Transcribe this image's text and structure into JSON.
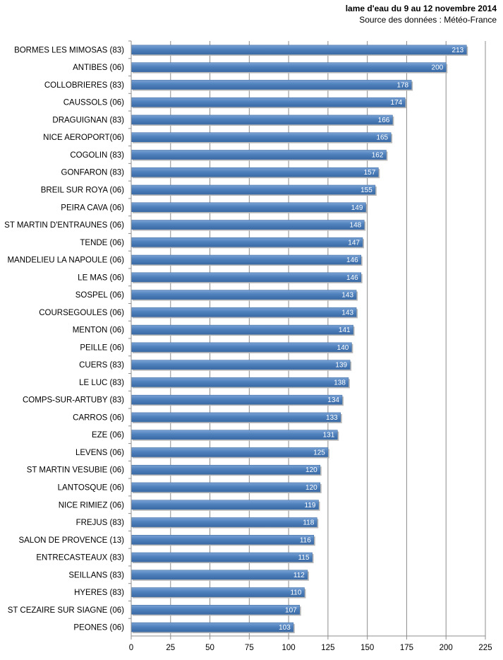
{
  "chart_data": {
    "type": "bar",
    "orientation": "horizontal",
    "title": "lame d'eau du 9 au 12 novembre 2014",
    "subtitle": "Source des données : Météo-France",
    "xlabel": "",
    "ylabel": "",
    "xlim": [
      0,
      225
    ],
    "ticks": [
      0,
      25,
      50,
      75,
      100,
      125,
      150,
      175,
      200,
      225
    ],
    "grid": true,
    "bar_color": "#4f81bd",
    "categories": [
      "BORMES LES MIMOSAS (83)",
      "ANTIBES (06)",
      "COLLOBRIERES (83)",
      "CAUSSOLS (06)",
      "DRAGUIGNAN (83)",
      "NICE AEROPORT(06)",
      "COGOLIN (83)",
      "GONFARON (83)",
      "BREIL SUR ROYA (06)",
      "PEIRA CAVA (06)",
      "ST MARTIN D'ENTRAUNES (06)",
      "TENDE (06)",
      "MANDELIEU LA NAPOULE (06)",
      "LE MAS (06)",
      "SOSPEL (06)",
      "COURSEGOULES (06)",
      "MENTON (06)",
      "PEILLE (06)",
      "CUERS (83)",
      "LE LUC (83)",
      "COMPS-SUR-ARTUBY (83)",
      "CARROS (06)",
      "EZE (06)",
      "LEVENS (06)",
      "ST MARTIN VESUBIE (06)",
      "LANTOSQUE (06)",
      "NICE RIMIEZ (06)",
      "FREJUS (83)",
      "SALON DE PROVENCE (13)",
      "ENTRECASTEAUX (83)",
      "SEILLANS (83)",
      "HYERES (83)",
      "ST CEZAIRE SUR SIAGNE (06)",
      "PEONES (06)"
    ],
    "values": [
      213,
      200,
      178,
      174,
      166,
      165,
      162,
      157,
      155,
      149,
      148,
      147,
      146,
      146,
      143,
      143,
      141,
      140,
      139,
      138,
      134,
      133,
      131,
      125,
      120,
      120,
      119,
      118,
      116,
      115,
      112,
      110,
      107,
      103
    ]
  }
}
